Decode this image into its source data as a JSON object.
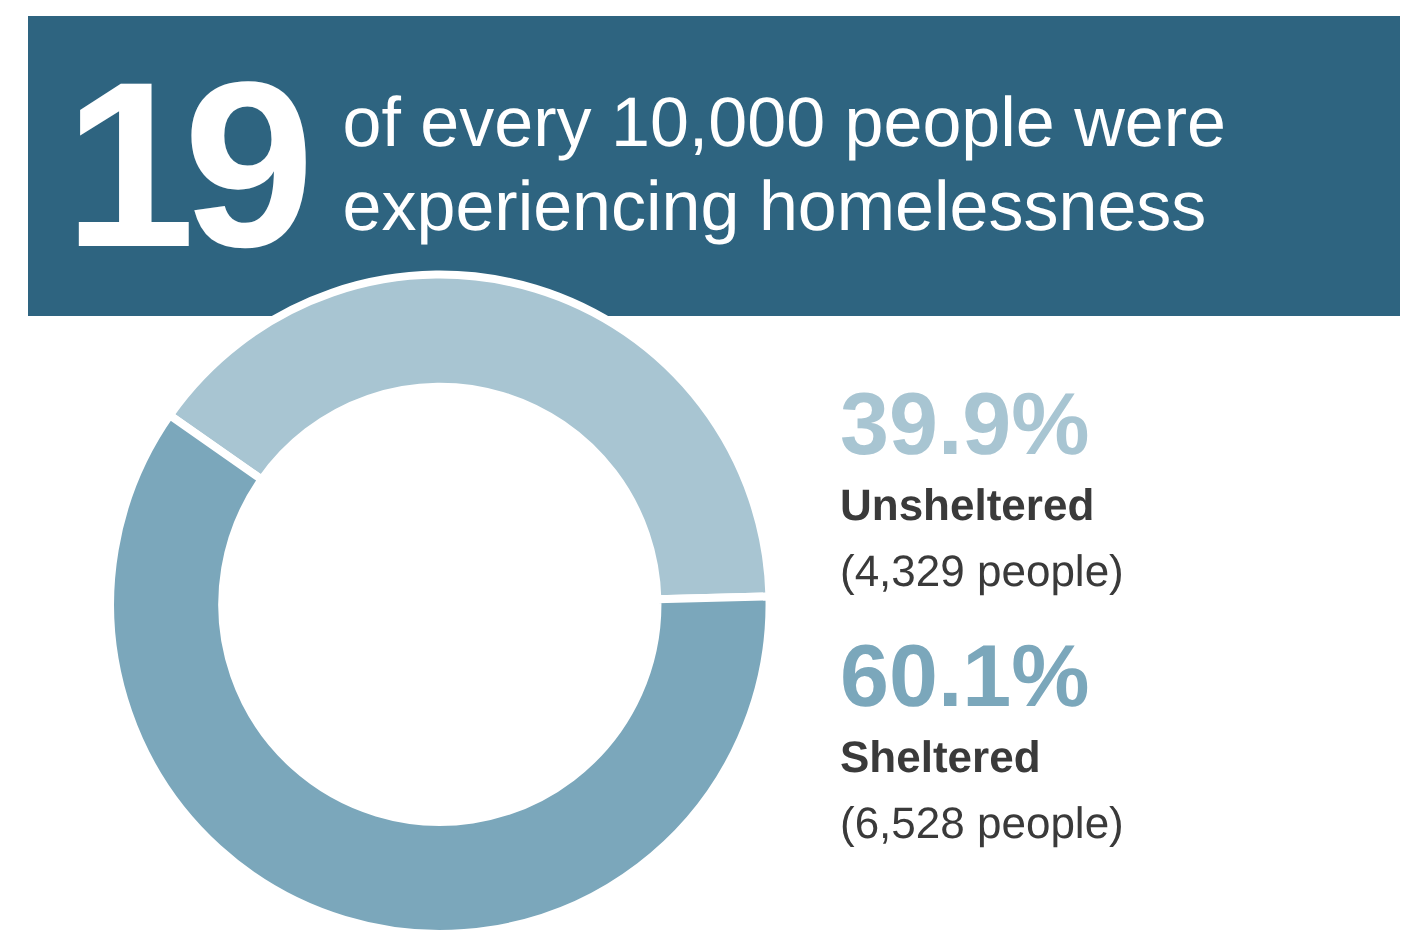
{
  "chart_data": {
    "type": "donut",
    "title": "19",
    "subtitle": "of every 10,000 people were experiencing homelessness",
    "categories": [
      "Unsheltered",
      "Sheltered"
    ],
    "values": [
      39.9,
      60.1
    ],
    "colors": [
      "#a8c5d2",
      "#7ba7bb"
    ],
    "value_labels": [
      "39.9%",
      "60.1%"
    ],
    "annotations": [
      "(4,329 people)",
      "(6,528 people)"
    ]
  }
}
